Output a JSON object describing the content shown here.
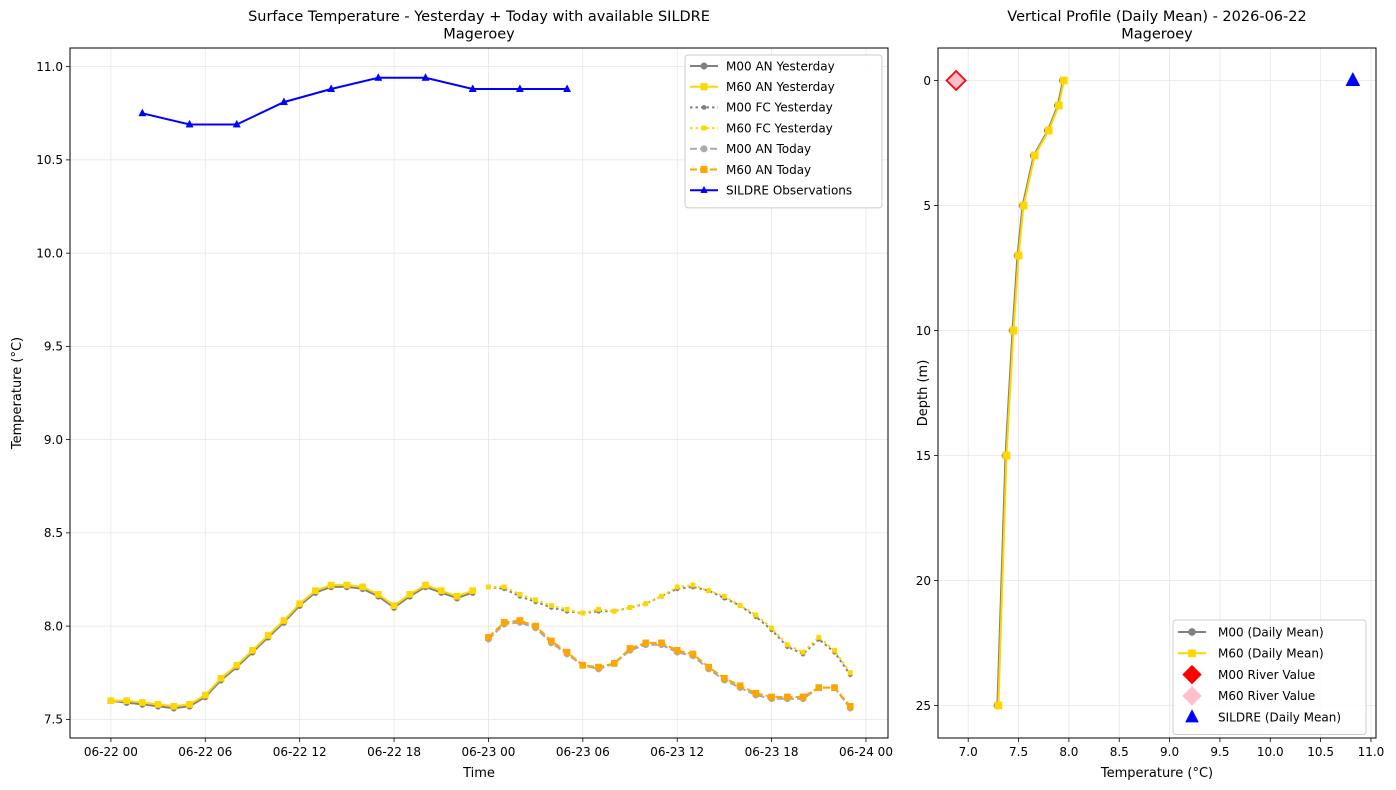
{
  "chart_data": [
    {
      "type": "line",
      "title": "Surface Temperature - Yesterday + Today with available SILDRE",
      "subtitle": "Mageroey",
      "xlabel": "Time",
      "ylabel": "Temperature (°C)",
      "x_unit": "hours since 06-22 00:00",
      "xlim": [
        -2.6,
        49.4
      ],
      "ylim": [
        7.4,
        11.1
      ],
      "x_ticks": [
        {
          "v": 0,
          "label": "06-22 00"
        },
        {
          "v": 6,
          "label": "06-22 06"
        },
        {
          "v": 12,
          "label": "06-22 12"
        },
        {
          "v": 18,
          "label": "06-22 18"
        },
        {
          "v": 24,
          "label": "06-23 00"
        },
        {
          "v": 30,
          "label": "06-23 06"
        },
        {
          "v": 36,
          "label": "06-23 12"
        },
        {
          "v": 42,
          "label": "06-23 18"
        },
        {
          "v": 48,
          "label": "06-24 00"
        }
      ],
      "y_ticks": [
        "7.5",
        "8.0",
        "8.5",
        "9.0",
        "9.5",
        "10.0",
        "10.5",
        "11.0"
      ],
      "grid": true,
      "legend_position": "top-right",
      "series": [
        {
          "name": "M00 AN Yesterday",
          "color": "#808080",
          "dash": "solid",
          "marker": "circle",
          "x": [
            0,
            1,
            2,
            3,
            4,
            5,
            6,
            7,
            8,
            9,
            10,
            11,
            12,
            13,
            14,
            15,
            16,
            17,
            18,
            19,
            20,
            21,
            22,
            23
          ],
          "y": [
            7.6,
            7.59,
            7.58,
            7.57,
            7.56,
            7.57,
            7.62,
            7.71,
            7.78,
            7.86,
            7.94,
            8.02,
            8.11,
            8.18,
            8.21,
            8.21,
            8.2,
            8.16,
            8.1,
            8.16,
            8.21,
            8.18,
            8.15,
            8.18
          ]
        },
        {
          "name": "M60 AN Yesterday",
          "color": "#ffd700",
          "dash": "solid",
          "marker": "square",
          "x": [
            0,
            1,
            2,
            3,
            4,
            5,
            6,
            7,
            8,
            9,
            10,
            11,
            12,
            13,
            14,
            15,
            16,
            17,
            18,
            19,
            20,
            21,
            22,
            23
          ],
          "y": [
            7.6,
            7.6,
            7.59,
            7.58,
            7.57,
            7.58,
            7.63,
            7.72,
            7.79,
            7.87,
            7.95,
            8.03,
            8.12,
            8.19,
            8.22,
            8.22,
            8.21,
            8.17,
            8.11,
            8.17,
            8.22,
            8.19,
            8.16,
            8.19
          ]
        },
        {
          "name": "M00 FC Yesterday",
          "color": "#808080",
          "dash": "dotted",
          "marker": "circle",
          "x": [
            24,
            25,
            26,
            27,
            28,
            29,
            30,
            31,
            32,
            33,
            34,
            35,
            36,
            37,
            38,
            39,
            40,
            41,
            42,
            43,
            44,
            45,
            46,
            47
          ],
          "y": [
            8.21,
            8.2,
            8.16,
            8.13,
            8.1,
            8.08,
            8.07,
            8.08,
            8.08,
            8.1,
            8.12,
            8.16,
            8.2,
            8.21,
            8.19,
            8.15,
            8.11,
            8.05,
            7.98,
            7.89,
            7.85,
            7.93,
            7.86,
            7.74
          ]
        },
        {
          "name": "M60 FC Yesterday",
          "color": "#ffd700",
          "dash": "dotted",
          "marker": "square",
          "x": [
            24,
            25,
            26,
            27,
            28,
            29,
            30,
            31,
            32,
            33,
            34,
            35,
            36,
            37,
            38,
            39,
            40,
            41,
            42,
            43,
            44,
            45,
            46,
            47
          ],
          "y": [
            8.21,
            8.21,
            8.17,
            8.14,
            8.11,
            8.09,
            8.07,
            8.09,
            8.08,
            8.1,
            8.12,
            8.16,
            8.21,
            8.22,
            8.19,
            8.16,
            8.11,
            8.06,
            7.99,
            7.9,
            7.86,
            7.94,
            7.87,
            7.75
          ]
        },
        {
          "name": "M00 AN Today",
          "color": "#a9a9a9",
          "dash": "dashed",
          "marker": "circle",
          "x": [
            24,
            25,
            26,
            27,
            28,
            29,
            30,
            31,
            32,
            33,
            34,
            35,
            36,
            37,
            38,
            39,
            40,
            41,
            42,
            43,
            44,
            45,
            46,
            47
          ],
          "y": [
            7.93,
            8.01,
            8.02,
            7.99,
            7.91,
            7.85,
            7.79,
            7.77,
            7.8,
            7.87,
            7.9,
            7.9,
            7.86,
            7.84,
            7.77,
            7.71,
            7.67,
            7.63,
            7.61,
            7.61,
            7.61,
            7.67,
            7.67,
            7.56
          ]
        },
        {
          "name": "M60 AN Today",
          "color": "#ffa500",
          "dash": "dashed",
          "marker": "square",
          "x": [
            24,
            25,
            26,
            27,
            28,
            29,
            30,
            31,
            32,
            33,
            34,
            35,
            36,
            37,
            38,
            39,
            40,
            41,
            42,
            43,
            44,
            45,
            46,
            47
          ],
          "y": [
            7.94,
            8.02,
            8.03,
            8.0,
            7.92,
            7.86,
            7.79,
            7.78,
            7.8,
            7.88,
            7.91,
            7.91,
            7.87,
            7.85,
            7.78,
            7.72,
            7.68,
            7.64,
            7.62,
            7.62,
            7.62,
            7.67,
            7.67,
            7.57
          ]
        },
        {
          "name": "SILDRE Observations",
          "color": "#0000ff",
          "dash": "solid",
          "marker": "triangle",
          "x": [
            2,
            5,
            8,
            11,
            14,
            17,
            20,
            23,
            26,
            29
          ],
          "y": [
            10.75,
            10.69,
            10.69,
            10.81,
            10.88,
            10.94,
            10.94,
            10.88,
            10.88,
            10.88
          ]
        }
      ]
    },
    {
      "type": "line",
      "title": "Vertical Profile (Daily Mean) - 2026-06-22",
      "subtitle": "Mageroey",
      "xlabel": "Temperature (°C)",
      "ylabel": "Depth (m)",
      "xlim": [
        6.7,
        11.05
      ],
      "ylim": [
        26.3,
        -1.3
      ],
      "y_inverted": true,
      "x_ticks": [
        "7.0",
        "7.5",
        "8.0",
        "8.5",
        "9.0",
        "9.5",
        "10.0",
        "10.5",
        "11.0"
      ],
      "y_ticks": [
        "0",
        "5",
        "10",
        "15",
        "20",
        "25"
      ],
      "grid": true,
      "legend_position": "lower-right",
      "series": [
        {
          "name": "M00 (Daily Mean)",
          "color": "#808080",
          "marker": "circle",
          "temperature": [
            7.94,
            7.89,
            7.79,
            7.65,
            7.54,
            7.49,
            7.44,
            7.37,
            7.29
          ],
          "depth": [
            0,
            1,
            2,
            3,
            5,
            7,
            10,
            15,
            25
          ]
        },
        {
          "name": "M60 (Daily Mean)",
          "color": "#ffd700",
          "marker": "square",
          "temperature": [
            7.95,
            7.9,
            7.8,
            7.66,
            7.55,
            7.5,
            7.45,
            7.38,
            7.3
          ],
          "depth": [
            0,
            1,
            2,
            3,
            5,
            7,
            10,
            15,
            25
          ]
        },
        {
          "name": "M00 River Value",
          "color": "#ff0000",
          "marker": "diamond",
          "temperature": [
            6.88
          ],
          "depth": [
            0
          ]
        },
        {
          "name": "M60 River Value",
          "color": "#ffc0cb",
          "marker": "diamond",
          "temperature": [
            6.88
          ],
          "depth": [
            0
          ]
        },
        {
          "name": "SILDRE (Daily Mean)",
          "color": "#0000ff",
          "marker": "triangle",
          "temperature": [
            10.82
          ],
          "depth": [
            0
          ]
        }
      ]
    }
  ]
}
